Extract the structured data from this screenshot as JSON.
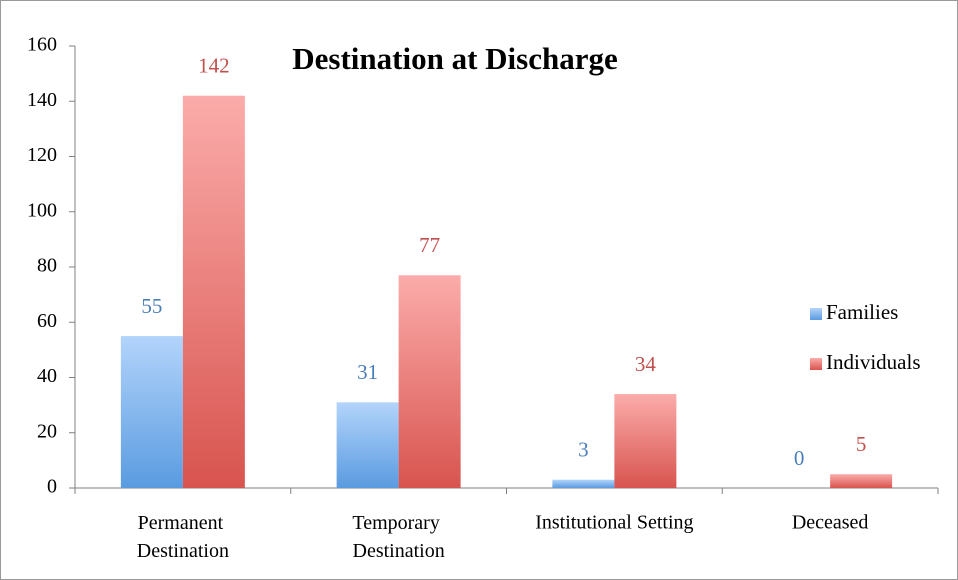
{
  "chart_data": {
    "type": "bar",
    "title": "Destination at Discharge",
    "categories": [
      "Permanent Destination",
      "Temporary Destination",
      "Institutional Setting",
      "Deceased"
    ],
    "series": [
      {
        "name": "Families",
        "color": "#5b9bd5",
        "values": [
          55,
          31,
          3,
          0
        ]
      },
      {
        "name": "Individuals",
        "color": "#d9534f",
        "values": [
          142,
          77,
          34,
          5
        ]
      }
    ],
    "ylim": [
      0,
      160
    ],
    "yticks": [
      0,
      20,
      40,
      60,
      80,
      100,
      120,
      140,
      160
    ],
    "legend": "right"
  }
}
